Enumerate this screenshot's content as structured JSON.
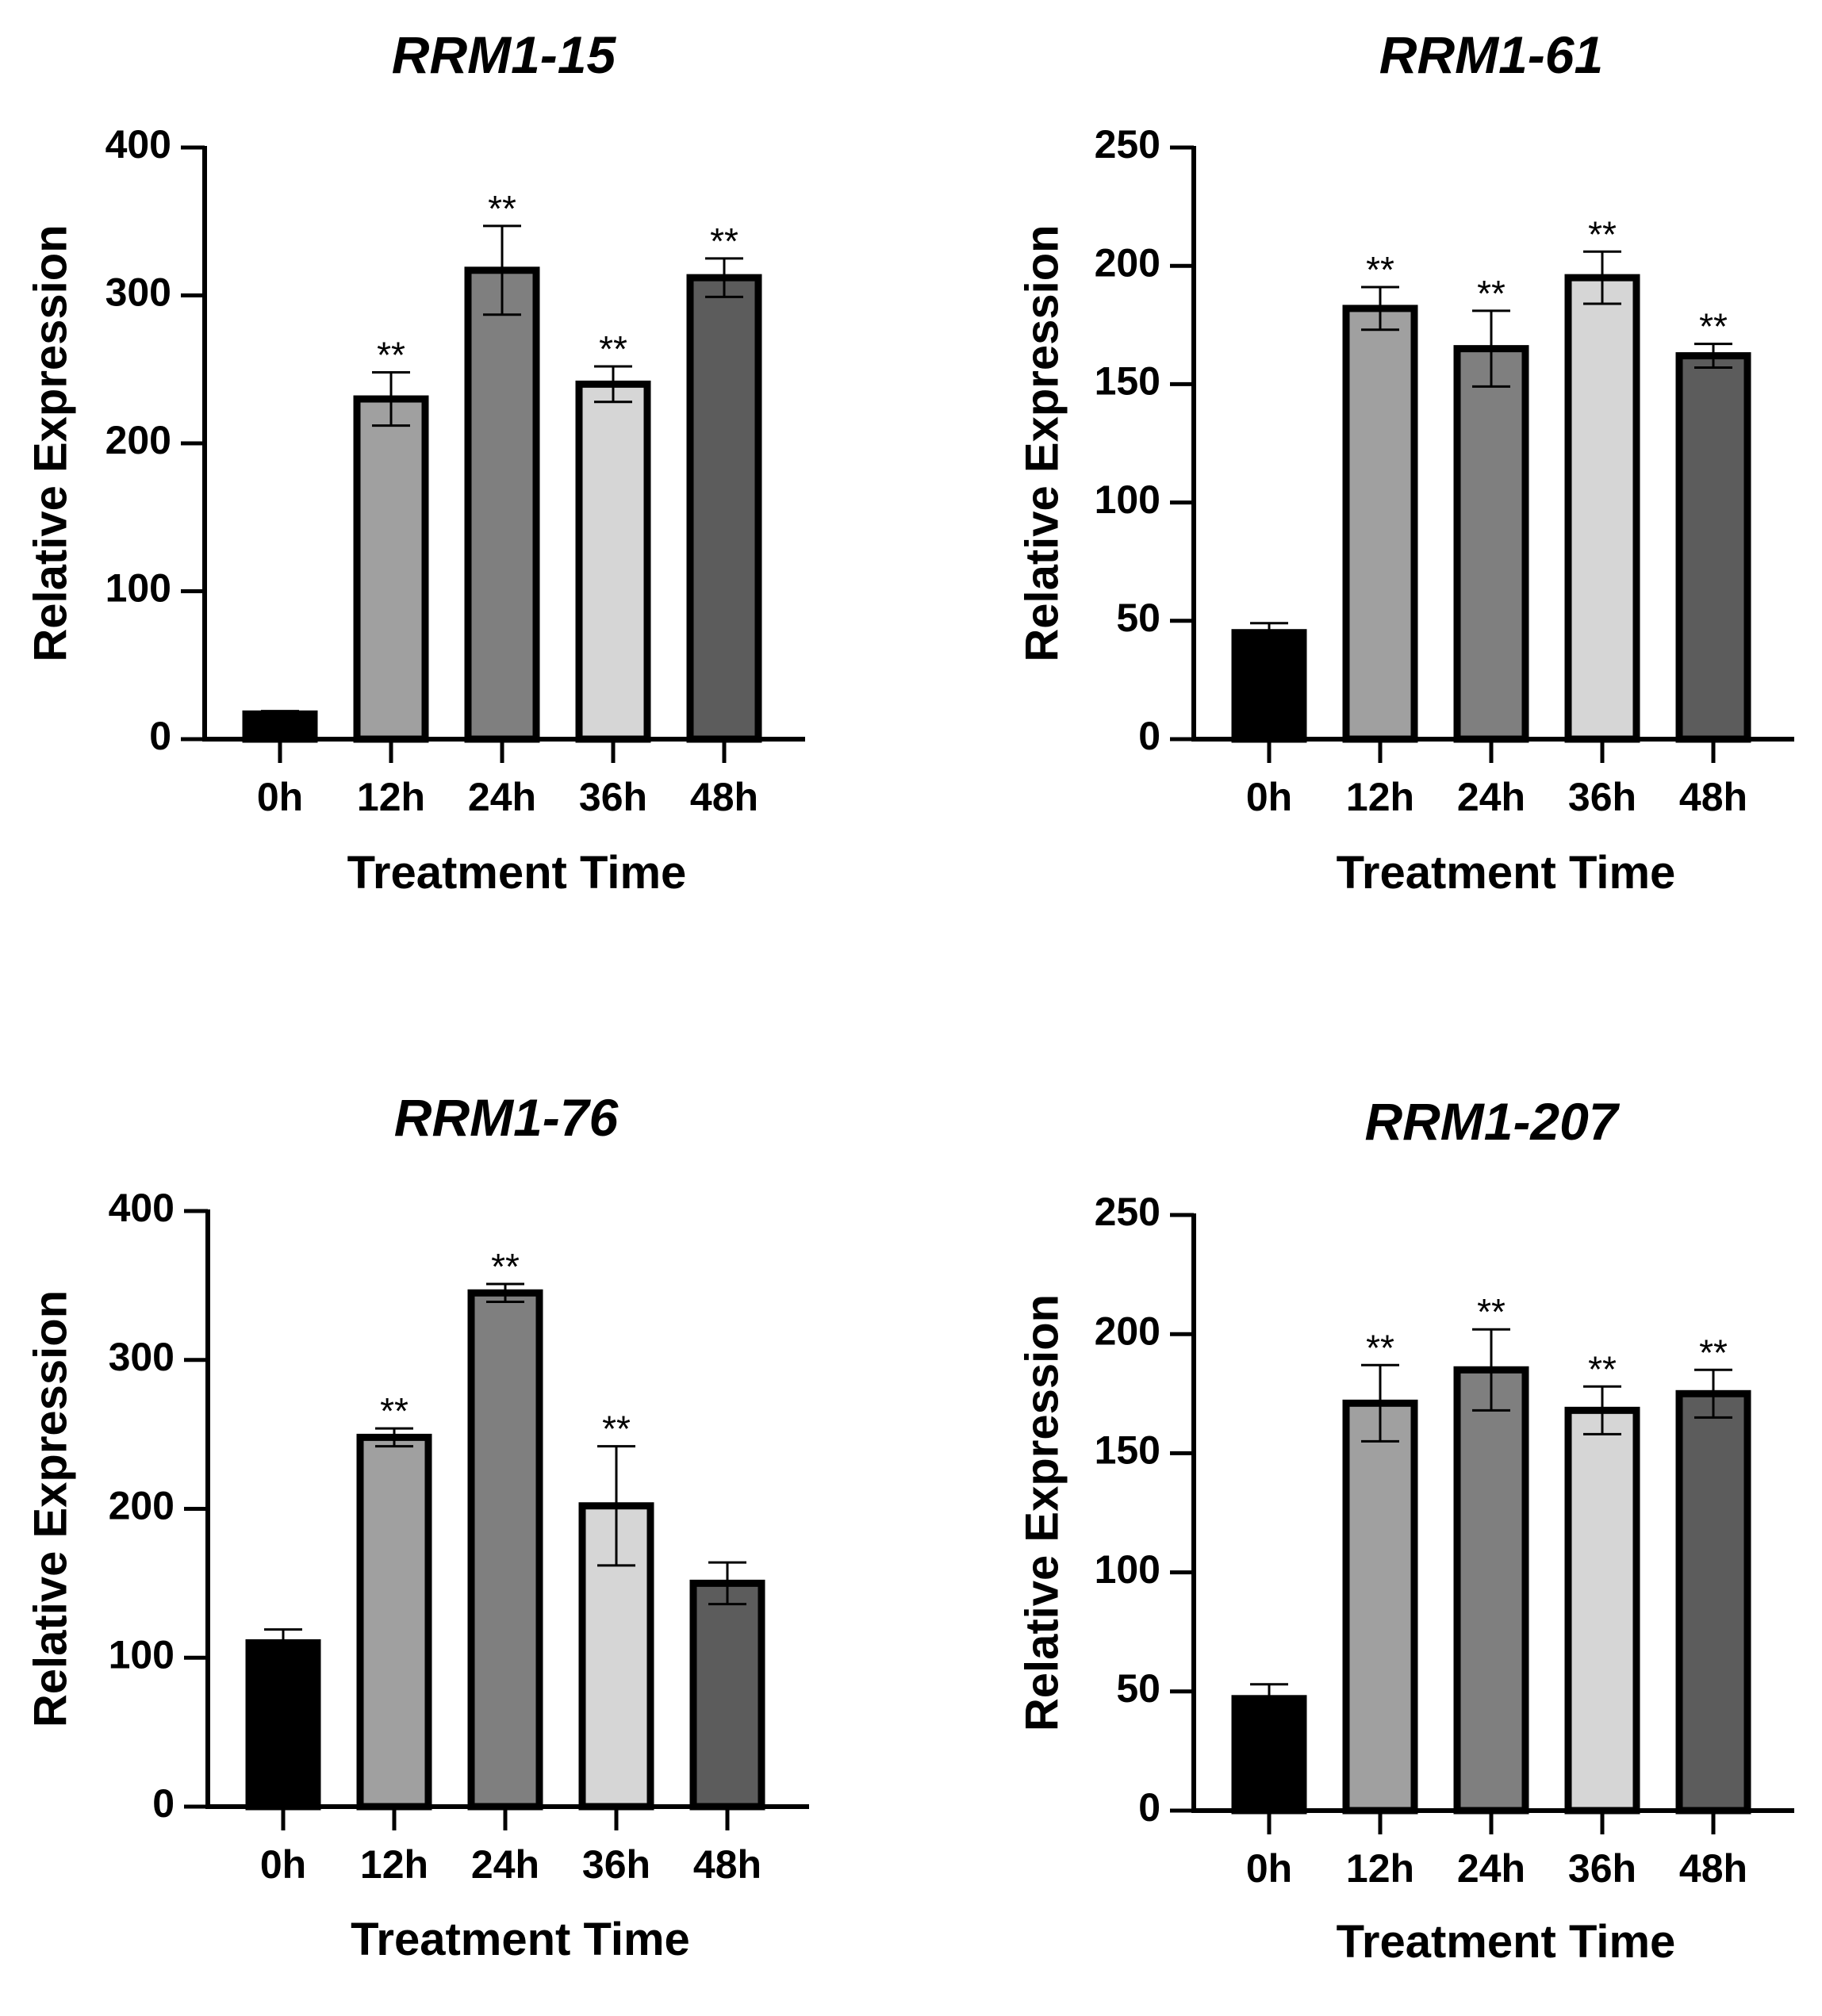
{
  "chart_data": [
    {
      "type": "bar",
      "title": "RRM1-15",
      "xlabel": "Treatment Time",
      "ylabel": "Relative Expression",
      "ylim": [
        0,
        400
      ],
      "yticks": [
        0,
        100,
        200,
        300,
        400
      ],
      "categories": [
        "0h",
        "12h",
        "24h",
        "36h",
        "48h"
      ],
      "values": [
        17,
        230,
        317,
        240,
        312
      ],
      "errors": [
        2,
        18,
        30,
        12,
        13
      ],
      "significance": [
        "",
        "**",
        "**",
        "**",
        "**"
      ],
      "colors": [
        "#000000",
        "#a0a0a0",
        "#7f7f7f",
        "#d6d6d6",
        "#5c5c5c"
      ]
    },
    {
      "type": "bar",
      "title": "RRM1-61",
      "xlabel": "Treatment Time",
      "ylabel": "Relative Expression",
      "ylim": [
        0,
        250
      ],
      "yticks": [
        0,
        50,
        100,
        150,
        200,
        250
      ],
      "categories": [
        "0h",
        "12h",
        "24h",
        "36h",
        "48h"
      ],
      "values": [
        45,
        182,
        165,
        195,
        162
      ],
      "errors": [
        4,
        9,
        16,
        11,
        5
      ],
      "significance": [
        "",
        "**",
        "**",
        "**",
        "**"
      ],
      "colors": [
        "#000000",
        "#a0a0a0",
        "#7f7f7f",
        "#d6d6d6",
        "#5c5c5c"
      ]
    },
    {
      "type": "bar",
      "title": "RRM1-76",
      "xlabel": "Treatment Time",
      "ylabel": "Relative Expression",
      "ylim": [
        0,
        400
      ],
      "yticks": [
        0,
        100,
        200,
        300,
        400
      ],
      "categories": [
        "0h",
        "12h",
        "24h",
        "36h",
        "48h"
      ],
      "values": [
        110,
        248,
        345,
        202,
        150
      ],
      "errors": [
        9,
        6,
        6,
        40,
        14
      ],
      "significance": [
        "",
        "**",
        "**",
        "**",
        ""
      ],
      "colors": [
        "#000000",
        "#a0a0a0",
        "#7f7f7f",
        "#d6d6d6",
        "#5c5c5c"
      ]
    },
    {
      "type": "bar",
      "title": "RRM1-207",
      "xlabel": "Treatment Time",
      "ylabel": "Relative Expression",
      "ylim": [
        0,
        250
      ],
      "yticks": [
        0,
        50,
        100,
        150,
        200,
        250
      ],
      "categories": [
        "0h",
        "12h",
        "24h",
        "36h",
        "48h"
      ],
      "values": [
        47,
        171,
        185,
        168,
        175
      ],
      "errors": [
        6,
        16,
        17,
        10,
        10
      ],
      "significance": [
        "",
        "**",
        "**",
        "**",
        "**"
      ],
      "colors": [
        "#000000",
        "#a0a0a0",
        "#7f7f7f",
        "#d6d6d6",
        "#5c5c5c"
      ]
    }
  ]
}
